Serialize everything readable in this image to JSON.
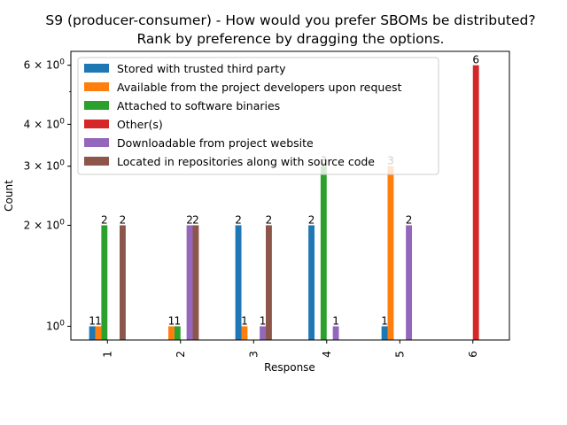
{
  "chart_data": {
    "type": "bar",
    "title_line1": "S9 (producer-consumer) - How would you prefer SBOMs be distributed?",
    "title_line2": "Rank by preference by dragging the options.",
    "xlabel": "Response",
    "ylabel": "Count",
    "yscale": "log",
    "ylim": [
      0.91,
      6.6
    ],
    "yticks": [
      {
        "value": 1,
        "base": "10",
        "exp": "0"
      },
      {
        "value": 2,
        "base": "2 × 10",
        "exp": "0"
      },
      {
        "value": 3,
        "base": "3 × 10",
        "exp": "0"
      },
      {
        "value": 4,
        "base": "4 × 10",
        "exp": "0"
      },
      {
        "value": 6,
        "base": "6 × 10",
        "exp": "0"
      }
    ],
    "categories": [
      "1",
      "2",
      "3",
      "4",
      "5",
      "6"
    ],
    "legend_position": "upper-left",
    "series": [
      {
        "name": "Stored with trusted third party",
        "color": "#1f77b4",
        "values": [
          1,
          null,
          2,
          2,
          1,
          null
        ]
      },
      {
        "name": "Available from the project developers upon request",
        "color": "#ff7f0e",
        "values": [
          1,
          1,
          1,
          null,
          3,
          null
        ]
      },
      {
        "name": "Attached to software binaries",
        "color": "#2ca02c",
        "values": [
          2,
          1,
          null,
          3,
          null,
          null
        ]
      },
      {
        "name": "Other(s)",
        "color": "#d62728",
        "values": [
          null,
          null,
          null,
          null,
          null,
          6
        ]
      },
      {
        "name": "Downloadable from project website",
        "color": "#9467bd",
        "values": [
          null,
          2,
          1,
          1,
          2,
          null
        ]
      },
      {
        "name": "Located in repositories along with source code",
        "color": "#8c564b",
        "values": [
          2,
          2,
          2,
          null,
          null,
          null
        ]
      }
    ]
  }
}
